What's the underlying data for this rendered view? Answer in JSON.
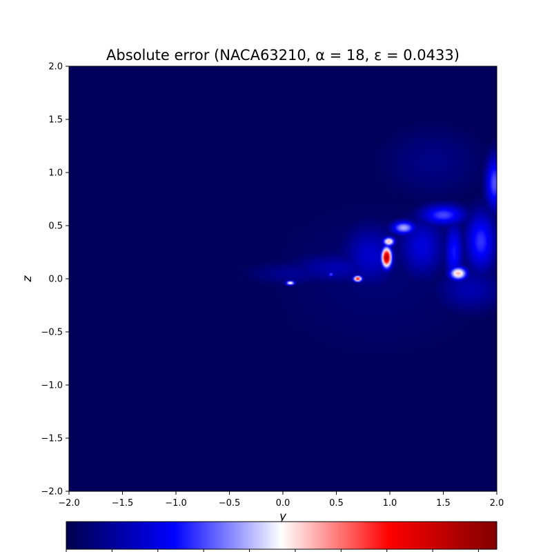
{
  "chart_data": {
    "type": "heatmap",
    "title": "Absolute error (NACA63210, α = 18, ε = 0.0433)",
    "xlabel": "y",
    "ylabel": "z",
    "xlim": [
      -2.0,
      2.0
    ],
    "ylim": [
      -2.0,
      2.0
    ],
    "xticks": [
      -2.0,
      -1.5,
      -1.0,
      -0.5,
      0.0,
      0.5,
      1.0,
      1.5,
      2.0
    ],
    "yticks": [
      -2.0,
      -1.5,
      -1.0,
      -0.5,
      0.0,
      0.5,
      1.0,
      1.5,
      2.0
    ],
    "xtick_labels": [
      "−2.0",
      "−1.5",
      "−1.0",
      "−0.5",
      "0.0",
      "0.5",
      "1.0",
      "1.5",
      "2.0"
    ],
    "ytick_labels": [
      "−2.0",
      "−1.5",
      "−1.0",
      "−0.5",
      "0.0",
      "0.5",
      "1.0",
      "1.5",
      "2.0"
    ],
    "colormap": "seismic",
    "colormap_stops": [
      "#00004c",
      "#0000ff",
      "#ffffff",
      "#ff0000",
      "#800000"
    ],
    "background_value": 0.02,
    "colorbar": {
      "orientation": "horizontal",
      "placement": "bottom",
      "tick_count": 10
    },
    "features": [
      {
        "y": 0.97,
        "z": 0.2,
        "sy": 0.035,
        "sz": 0.07,
        "value": 0.9
      },
      {
        "y": 0.99,
        "z": 0.35,
        "sy": 0.04,
        "sz": 0.03,
        "value": 0.58
      },
      {
        "y": 0.7,
        "z": 0.0,
        "sy": 0.03,
        "sz": 0.02,
        "value": 0.75
      },
      {
        "y": 0.07,
        "z": -0.04,
        "sy": 0.03,
        "sz": 0.015,
        "value": 0.55
      },
      {
        "y": 0.45,
        "z": 0.04,
        "sy": 0.02,
        "sz": 0.015,
        "value": 0.35
      },
      {
        "y": 1.64,
        "z": 0.05,
        "sy": 0.06,
        "sz": 0.045,
        "value": 0.58
      },
      {
        "y": 1.13,
        "z": 0.48,
        "sy": 0.08,
        "sz": 0.045,
        "value": 0.42
      },
      {
        "y": 1.5,
        "z": 0.6,
        "sy": 0.15,
        "sz": 0.07,
        "value": 0.32
      },
      {
        "y": 1.85,
        "z": 0.35,
        "sy": 0.1,
        "sz": 0.2,
        "value": 0.3
      },
      {
        "y": 1.98,
        "z": 0.9,
        "sy": 0.06,
        "sz": 0.18,
        "value": 0.33
      },
      {
        "y": 1.6,
        "z": 0.25,
        "sy": 0.06,
        "sz": 0.2,
        "value": 0.27
      },
      {
        "y": 1.3,
        "z": 0.3,
        "sy": 0.15,
        "sz": 0.2,
        "value": 0.2
      },
      {
        "y": 0.82,
        "z": 0.22,
        "sy": 0.18,
        "sz": 0.2,
        "value": 0.18
      },
      {
        "y": 0.5,
        "z": 0.1,
        "sy": 0.3,
        "sz": 0.1,
        "value": 0.14
      },
      {
        "y": 0.1,
        "z": 0.05,
        "sy": 0.3,
        "sz": 0.08,
        "value": 0.1
      },
      {
        "y": 1.75,
        "z": -0.1,
        "sy": 0.22,
        "sz": 0.15,
        "value": 0.14
      },
      {
        "y": 1.4,
        "z": 1.1,
        "sy": 0.35,
        "sz": 0.25,
        "value": 0.08
      },
      {
        "y": 0.9,
        "z": 0.0,
        "sy": 0.8,
        "sz": 0.6,
        "value": 0.05
      }
    ]
  }
}
